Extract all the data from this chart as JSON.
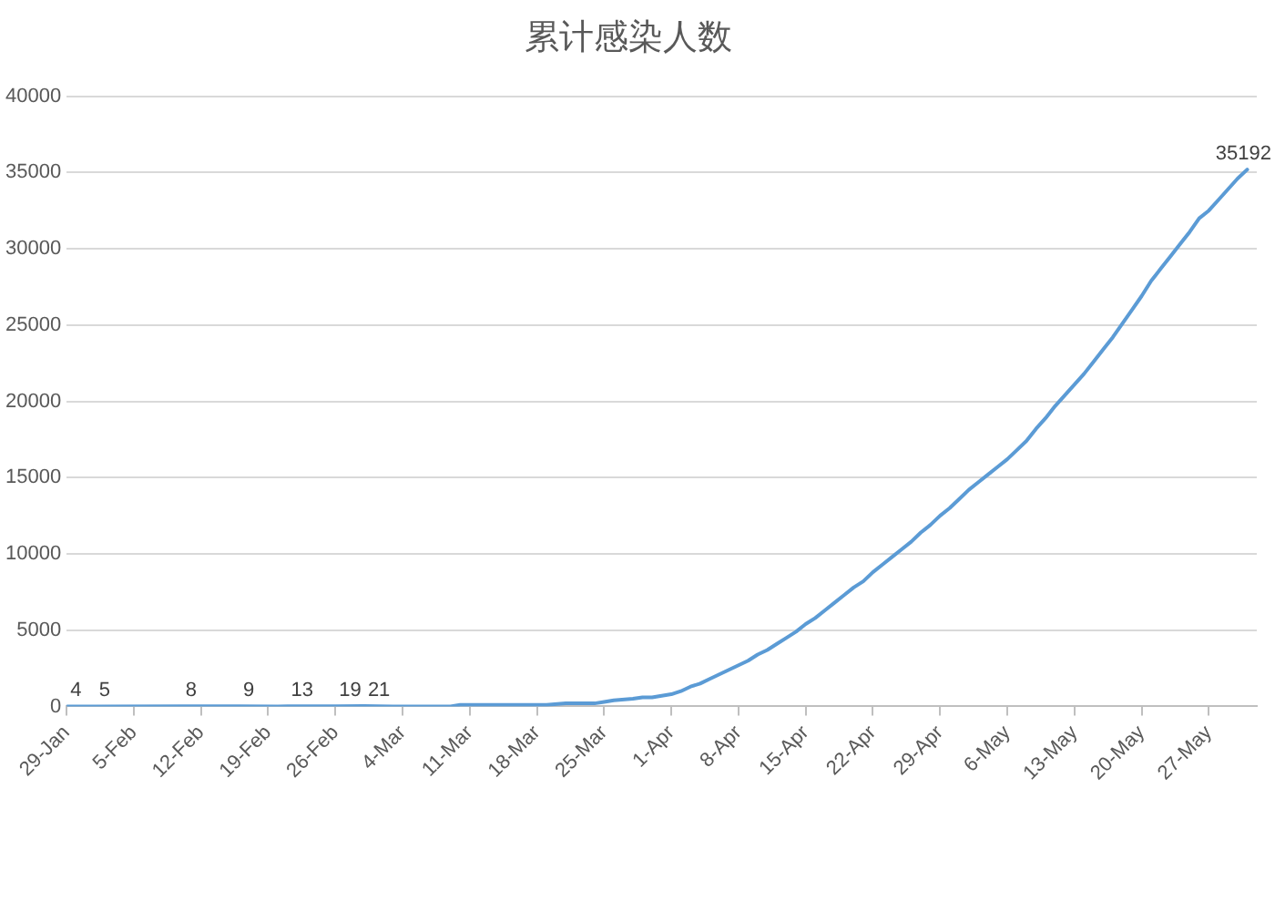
{
  "chart_data": {
    "type": "line",
    "title": "累计感染人数",
    "x": [
      "--01-29",
      "--02-01",
      "--02-10",
      "--02-16",
      "--02-20",
      "--02-21",
      "--02-26",
      "--02-29",
      "--03-03",
      "--03-05",
      "--03-07",
      "--03-09",
      "--03-10",
      "--03-12",
      "--03-14",
      "--03-15",
      "--03-17",
      "--03-18",
      "--03-19",
      "--03-21",
      "--03-23",
      "--03-24",
      "--03-25",
      "--03-26",
      "--03-28",
      "--03-29",
      "--03-30",
      "--03-31",
      "--04-01",
      "--04-02",
      "--04-03",
      "--04-04",
      "--04-05",
      "--04-06",
      "--04-07",
      "--04-08",
      "--04-09",
      "--04-10",
      "--04-11",
      "--04-12",
      "--04-13",
      "--04-14",
      "--04-15",
      "--04-16",
      "--04-17",
      "--04-18",
      "--04-19",
      "--04-20",
      "--04-21",
      "--04-22",
      "--04-23",
      "--04-24",
      "--04-25",
      "--04-26",
      "--04-27",
      "--04-28",
      "--04-29",
      "--04-30",
      "--05-01",
      "--05-02",
      "--05-03",
      "--05-04",
      "--05-05",
      "--05-06",
      "--05-07",
      "--05-08",
      "--05-09",
      "--05-10",
      "--05-11",
      "--05-12",
      "--05-13",
      "--05-14",
      "--05-15",
      "--05-16",
      "--05-17",
      "--05-18",
      "--05-19",
      "--05-20",
      "--05-21",
      "--05-22",
      "--05-23",
      "--05-24",
      "--05-25",
      "--05-26",
      "--05-27",
      "--05-28",
      "--05-29",
      "--05-30",
      "--05-31"
    ],
    "values": [
      4,
      5,
      8,
      9,
      0,
      13,
      19,
      21,
      0,
      0,
      0,
      0,
      100,
      100,
      100,
      100,
      100,
      100,
      100,
      200,
      200,
      200,
      300,
      400,
      500,
      600,
      600,
      700,
      800,
      1000,
      1300,
      1500,
      1800,
      2100,
      2400,
      2700,
      3000,
      3400,
      3700,
      4100,
      4500,
      4900,
      5400,
      5800,
      6300,
      6800,
      7300,
      7800,
      8200,
      8800,
      9300,
      9800,
      10300,
      10800,
      11400,
      11900,
      12500,
      13000,
      13600,
      14200,
      14700,
      15200,
      15700,
      16200,
      16800,
      17400,
      18200,
      18900,
      19700,
      20400,
      21100,
      21800,
      22600,
      23400,
      24200,
      25100,
      26000,
      26900,
      27900,
      28700,
      29500,
      30300,
      31100,
      32000,
      32500,
      33200,
      33900,
      34600,
      35192
    ],
    "value_labels": [
      "4",
      "5",
      "8",
      "9",
      null,
      "13",
      "19",
      "21",
      null,
      null,
      null,
      null,
      null,
      null,
      null,
      null,
      null,
      null,
      null,
      null,
      null,
      null,
      null,
      null,
      null,
      null,
      null,
      null,
      null,
      null,
      null,
      null,
      null,
      null,
      null,
      null,
      null,
      null,
      null,
      null,
      null,
      null,
      null,
      null,
      null,
      null,
      null,
      null,
      null,
      null,
      null,
      null,
      null,
      null,
      null,
      null,
      null,
      null,
      null,
      null,
      null,
      null,
      null,
      null,
      null,
      null,
      null,
      null,
      null,
      null,
      null,
      null,
      null,
      null,
      null,
      null,
      null,
      null,
      null,
      null,
      null,
      null,
      null,
      null,
      null,
      null,
      null,
      null,
      "35192"
    ],
    "color": "#5b9bd5",
    "marker": "none",
    "xlim": [
      "--01-29",
      "--06-01"
    ],
    "xticks": [
      {
        "value": "--01-29",
        "label": "29-Jan"
      },
      {
        "value": "--02-05",
        "label": "5-Feb"
      },
      {
        "value": "--02-12",
        "label": "12-Feb"
      },
      {
        "value": "--02-19",
        "label": "19-Feb"
      },
      {
        "value": "--02-26",
        "label": "26-Feb"
      },
      {
        "value": "--03-04",
        "label": "4-Mar"
      },
      {
        "value": "--03-11",
        "label": "11-Mar"
      },
      {
        "value": "--03-18",
        "label": "18-Mar"
      },
      {
        "value": "--03-25",
        "label": "25-Mar"
      },
      {
        "value": "--04-01",
        "label": "1-Apr"
      },
      {
        "value": "--04-08",
        "label": "8-Apr"
      },
      {
        "value": "--04-15",
        "label": "15-Apr"
      },
      {
        "value": "--04-22",
        "label": "22-Apr"
      },
      {
        "value": "--04-29",
        "label": "29-Apr"
      },
      {
        "value": "--05-06",
        "label": "6-May"
      },
      {
        "value": "--05-13",
        "label": "13-May"
      },
      {
        "value": "--05-20",
        "label": "20-May"
      },
      {
        "value": "--05-27",
        "label": "27-May"
      }
    ],
    "ylim": [
      0,
      40000
    ],
    "yticks": [
      0,
      5000,
      10000,
      15000,
      20000,
      25000,
      30000,
      35000,
      40000
    ],
    "grid": "y",
    "legend": false
  }
}
